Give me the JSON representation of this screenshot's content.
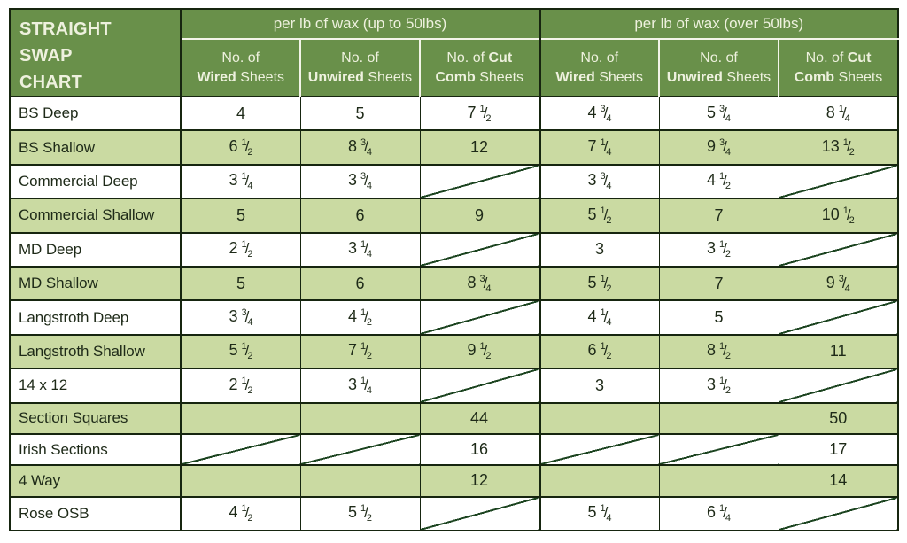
{
  "title_lines": [
    "STRAIGHT",
    "SWAP",
    "CHART"
  ],
  "groups": [
    {
      "label": "per lb of wax (up to 50lbs)"
    },
    {
      "label": "per lb of wax (over 50lbs)"
    }
  ],
  "columns": [
    {
      "lines": [
        [
          {
            "text": "No. of",
            "bold": false
          }
        ],
        [
          {
            "text": "Wired",
            "bold": true
          },
          {
            "text": " Sheets",
            "bold": false
          }
        ]
      ]
    },
    {
      "lines": [
        [
          {
            "text": "No. of",
            "bold": false
          }
        ],
        [
          {
            "text": "Unwired",
            "bold": true
          },
          {
            "text": " Sheets",
            "bold": false
          }
        ]
      ]
    },
    {
      "lines": [
        [
          {
            "text": "No. of ",
            "bold": false
          },
          {
            "text": "Cut",
            "bold": true
          }
        ],
        [
          {
            "text": "Comb",
            "bold": true
          },
          {
            "text": " Sheets",
            "bold": false
          }
        ]
      ]
    },
    {
      "lines": [
        [
          {
            "text": "No. of",
            "bold": false
          }
        ],
        [
          {
            "text": "Wired",
            "bold": true
          },
          {
            "text": " Sheets",
            "bold": false
          }
        ]
      ]
    },
    {
      "lines": [
        [
          {
            "text": "No. of",
            "bold": false
          }
        ],
        [
          {
            "text": "Unwired",
            "bold": true
          },
          {
            "text": " Sheets",
            "bold": false
          }
        ]
      ]
    },
    {
      "lines": [
        [
          {
            "text": "No. of ",
            "bold": false
          },
          {
            "text": "Cut",
            "bold": true
          }
        ],
        [
          {
            "text": "Comb",
            "bold": true
          },
          {
            "text": " Sheets",
            "bold": false
          }
        ]
      ]
    }
  ],
  "rows": [
    {
      "label": "BS Deep",
      "values": [
        "4",
        "5",
        "7 1/2",
        "4 3/4",
        "5 3/4",
        "8 1/4"
      ]
    },
    {
      "label": "BS Shallow",
      "values": [
        "6 1/2",
        "8 3/4",
        "12",
        "7 1/4",
        "9 3/4",
        "13 1/2"
      ]
    },
    {
      "label": "Commercial Deep",
      "values": [
        "3 1/4",
        "3 3/4",
        null,
        "3 3/4",
        "4 1/2",
        null
      ]
    },
    {
      "label": "Commercial Shallow",
      "values": [
        "5",
        "6",
        "9",
        "5 1/2",
        "7",
        "10 1/2"
      ]
    },
    {
      "label": "MD Deep",
      "values": [
        "2 1/2",
        "3 1/4",
        null,
        "3",
        "3 1/2",
        null
      ]
    },
    {
      "label": "MD Shallow",
      "values": [
        "5",
        "6",
        "8 3/4",
        "5 1/2",
        "7",
        "9 3/4"
      ]
    },
    {
      "label": "Langstroth Deep",
      "values": [
        "3 3/4",
        "4 1/2",
        null,
        "4 1/4",
        "5",
        null
      ]
    },
    {
      "label": "Langstroth Shallow",
      "values": [
        "5 1/2",
        "7 1/2",
        "9 1/2",
        "6 1/2",
        "8 1/2",
        "11"
      ]
    },
    {
      "label": "14 x 12",
      "values": [
        "2 1/2",
        "3 1/4",
        null,
        "3",
        "3 1/2",
        null
      ]
    },
    {
      "label": "Section Squares",
      "values": [
        null,
        null,
        "44",
        null,
        null,
        "50"
      ]
    },
    {
      "label": "Irish Sections",
      "values": [
        null,
        null,
        "16",
        null,
        null,
        "17"
      ]
    },
    {
      "label": "4 Way",
      "values": [
        null,
        null,
        "12",
        null,
        null,
        "14"
      ]
    },
    {
      "label": "Rose OSB",
      "values": [
        "4 1/2",
        "5 1/2",
        null,
        "5 1/4",
        "6 1/4",
        null
      ]
    }
  ],
  "colors": {
    "header_green": "#69904a",
    "row_green": "#cadaa2",
    "border_ink": "#16250f",
    "diagonal_line": "#1c4420",
    "header_text": "#eef1de",
    "body_text": "#1e2a18"
  }
}
